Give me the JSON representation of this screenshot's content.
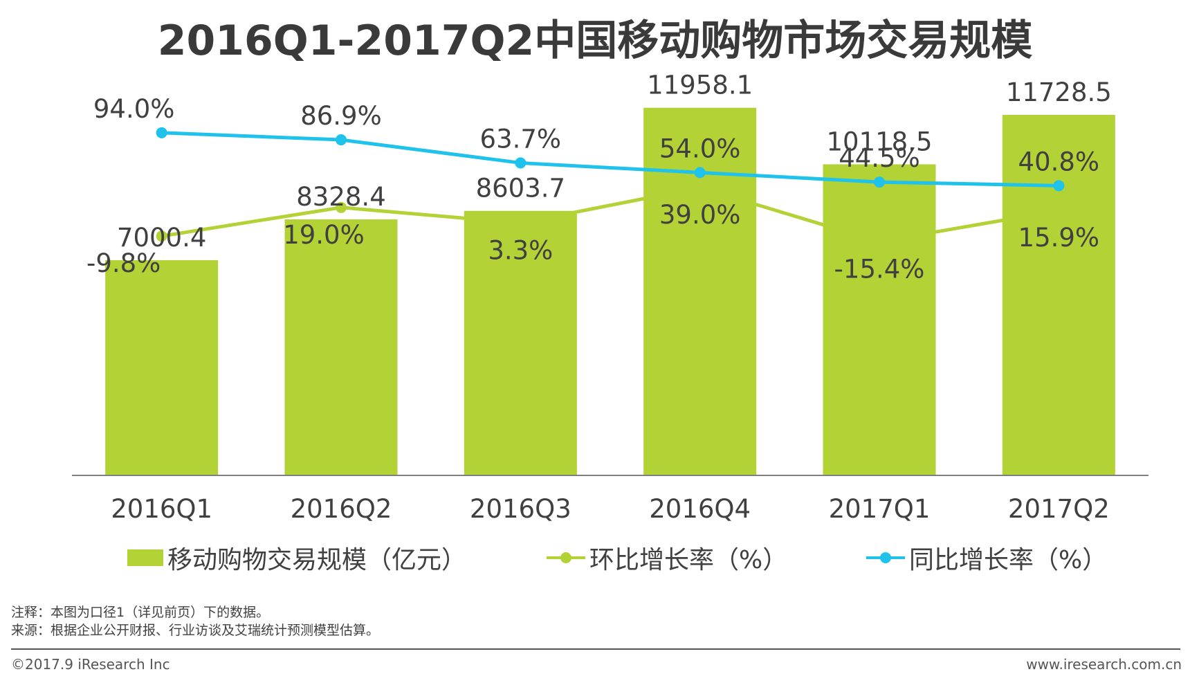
{
  "chart_data": {
    "type": "bar",
    "title": "2016Q1-2017Q2中国移动购物市场交易规模",
    "categories": [
      "2016Q1",
      "2016Q2",
      "2016Q3",
      "2016Q4",
      "2017Q1",
      "2017Q2"
    ],
    "series": [
      {
        "name": "移动购物交易规模（亿元）",
        "type": "bar",
        "values": [
          7000.4,
          8328.4,
          8603.7,
          11958.1,
          10118.5,
          11728.5
        ],
        "labels": [
          "7000.4",
          "8328.4",
          "8603.7",
          "11958.1",
          "10118.5",
          "11728.5"
        ],
        "color": "#b3d235"
      },
      {
        "name": "环比增长率（%）",
        "type": "line",
        "values": [
          -9.8,
          19.0,
          3.3,
          39.0,
          -15.4,
          15.9
        ],
        "labels": [
          "-9.8%",
          "19.0%",
          "3.3%",
          "39.0%",
          "-15.4%",
          "15.9%"
        ],
        "color": "#b3d235"
      },
      {
        "name": "同比增长率（%）",
        "type": "line",
        "values": [
          94.0,
          86.9,
          63.7,
          54.0,
          44.5,
          40.8
        ],
        "labels": [
          "94.0%",
          "86.9%",
          "63.7%",
          "54.0%",
          "44.5%",
          "40.8%"
        ],
        "color": "#1ec2ea"
      }
    ],
    "xlabel": "",
    "ylabel": "",
    "legend": "bottom"
  },
  "legend": {
    "bar_label": "移动购物交易规模（亿元）",
    "mom_label": "环比增长率（%）",
    "yoy_label": "同比增长率（%）"
  },
  "notes": {
    "note": "注释：本图为口径1（详见前页）下的数据。",
    "source": "来源：根据企业公开财报、行业访谈及艾瑞统计预测模型估算。"
  },
  "footer": {
    "copyright": "©2017.9 iResearch Inc",
    "website": "www.iresearch.com.cn"
  }
}
